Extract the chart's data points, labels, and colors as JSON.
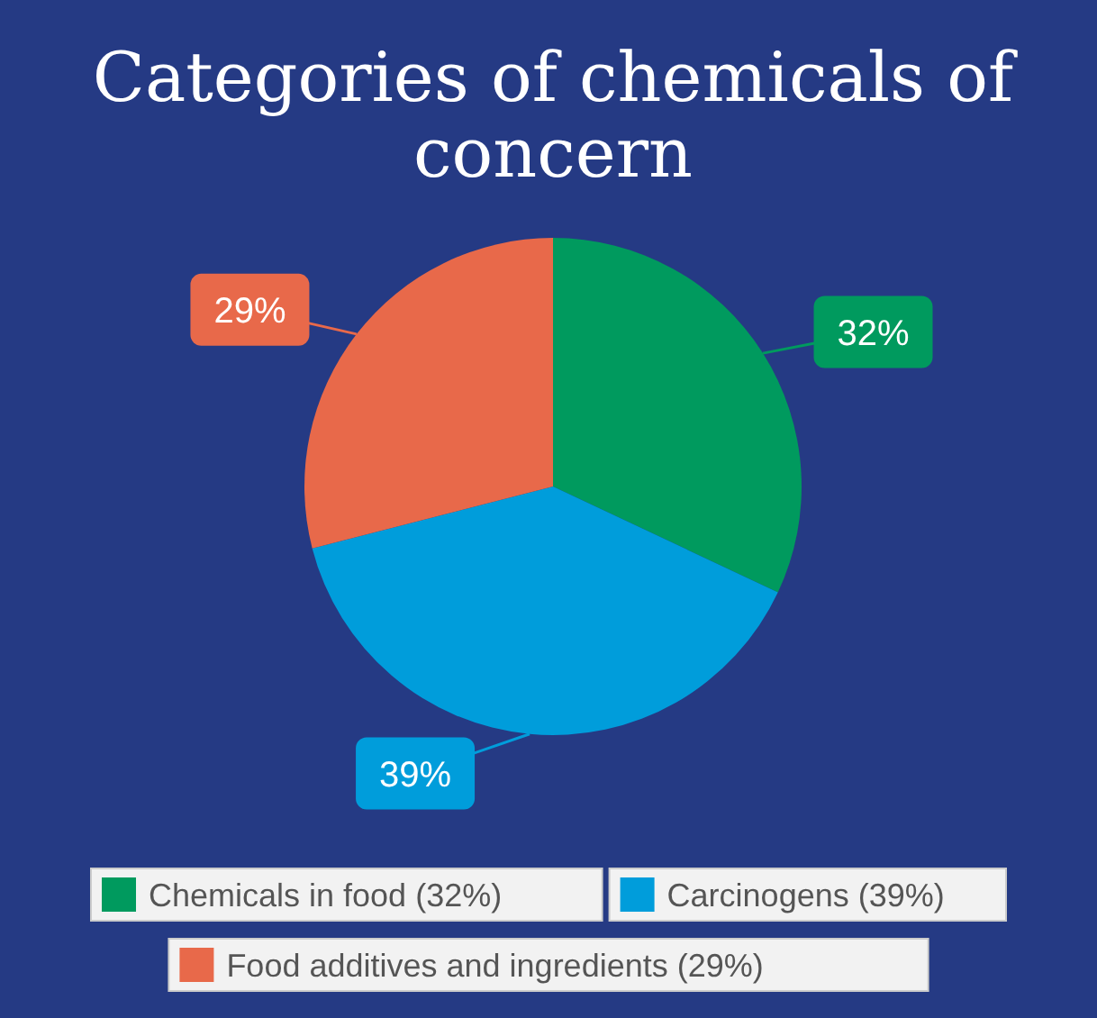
{
  "chart_data": {
    "type": "pie",
    "title": "Categories of chemicals of concern",
    "categories": [
      "Chemicals in food (32%)",
      "Carcinogens (39%)",
      "Food additives and ingredients (29%)"
    ],
    "values": [
      32,
      39,
      29
    ],
    "colors": [
      "#009a5e",
      "#009ddb",
      "#e8694a"
    ],
    "value_labels": [
      "32%",
      "39%",
      "29%"
    ],
    "legend": "bottom"
  }
}
